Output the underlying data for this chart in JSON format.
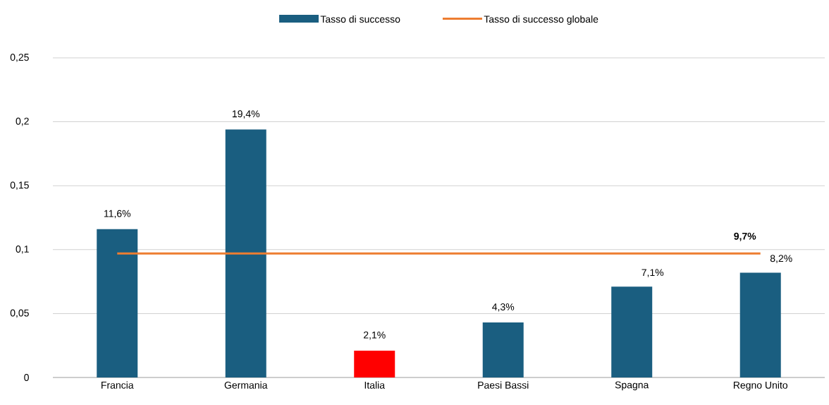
{
  "chart_data": {
    "type": "bar",
    "categories": [
      "Francia",
      "Germania",
      "Italia",
      "Paesi Bassi",
      "Spagna",
      "Regno Unito"
    ],
    "series": [
      {
        "name": "Tasso di successo",
        "color": "#1a5e80",
        "colors": [
          "#1a5e80",
          "#1a5e80",
          "#ff0000",
          "#1a5e80",
          "#1a5e80",
          "#1a5e80"
        ],
        "values": [
          0.116,
          0.194,
          0.021,
          0.043,
          0.071,
          0.082
        ],
        "value_labels": [
          "11,6%",
          "19,4%",
          "2,1%",
          "4,3%",
          "7,1%",
          "8,2%"
        ]
      },
      {
        "name": "Tasso di successo globale",
        "type": "line",
        "color": "#ed7d31",
        "values": [
          0.097,
          0.097,
          0.097,
          0.097,
          0.097,
          0.097
        ],
        "value_labels": [
          null,
          null,
          null,
          null,
          null,
          "**9,7%**"
        ]
      }
    ],
    "ylim": [
      0,
      0.25
    ],
    "yticks": [
      0,
      {
        "value": 0.05,
        "label": "0,05"
      },
      {
        "value": 0.1,
        "label": "0,1"
      },
      {
        "value": 0.15,
        "label": "0,15"
      },
      {
        "value": 0.2,
        "label": "0,2"
      },
      {
        "value": 0.25,
        "label": "0,25"
      }
    ],
    "grid": "y",
    "legend": "top"
  }
}
